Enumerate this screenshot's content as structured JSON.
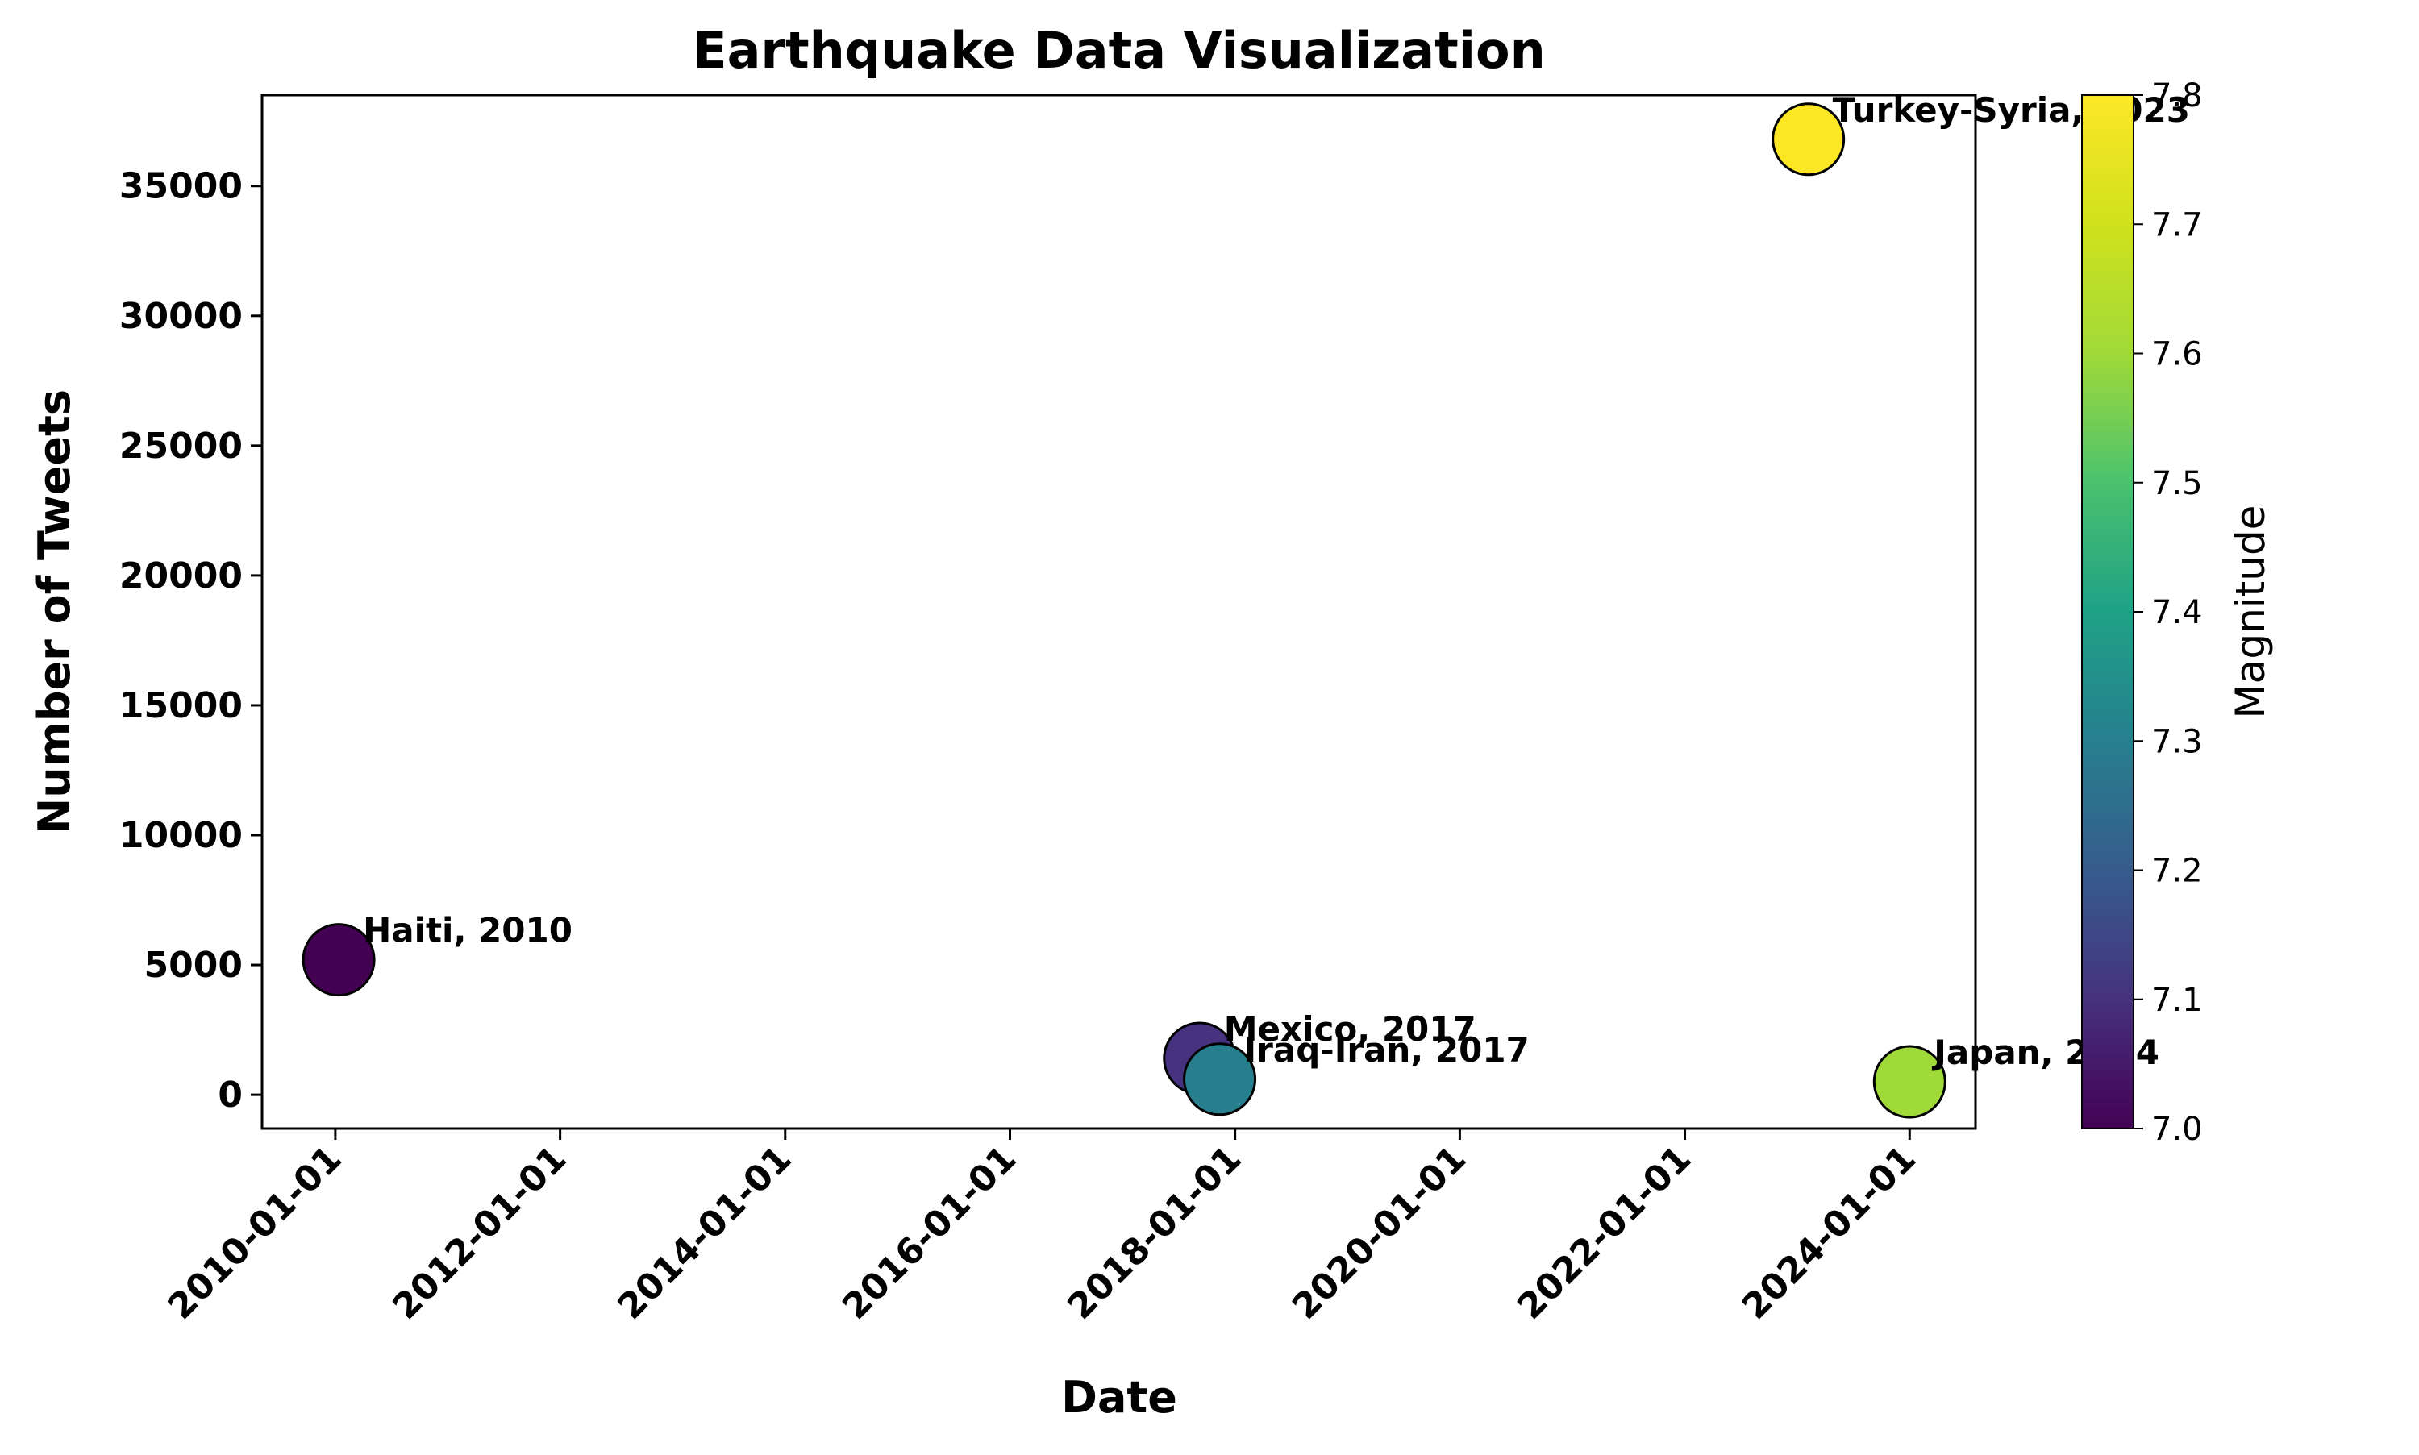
{
  "chart_data": {
    "type": "scatter",
    "title": "Earthquake Data Visualization",
    "xlabel": "Date",
    "ylabel": "Number of Tweets",
    "x_tick_labels": [
      "2010-01-01",
      "2012-01-01",
      "2014-01-01",
      "2016-01-01",
      "2018-01-01",
      "2020-01-01",
      "2022-01-01",
      "2024-01-01"
    ],
    "y_tick_labels": [
      "0",
      "5000",
      "10000",
      "15000",
      "20000",
      "25000",
      "30000",
      "35000"
    ],
    "xlim": [
      "2009-05-08",
      "2024-08-02"
    ],
    "ylim": [
      -1300,
      38500
    ],
    "grid": false,
    "points": [
      {
        "label": "Haiti, 2010",
        "date": "2010-01-12",
        "tweets": 5200,
        "magnitude": 7.0
      },
      {
        "label": "Mexico, 2017",
        "date": "2017-09-08",
        "tweets": 1400,
        "magnitude": 7.1
      },
      {
        "label": "Iraq-Iran, 2017",
        "date": "2017-11-12",
        "tweets": 600,
        "magnitude": 7.3
      },
      {
        "label": "Turkey-Syria, 2023",
        "date": "2023-02-06",
        "tweets": 36800,
        "magnitude": 7.8
      },
      {
        "label": "Japan, 2024",
        "date": "2024-01-01",
        "tweets": 500,
        "magnitude": 7.6
      }
    ],
    "colorbar": {
      "label": "Magnitude",
      "colormap": "viridis",
      "range": [
        7.0,
        7.8
      ],
      "tick_labels": [
        "7.0",
        "7.1",
        "7.2",
        "7.3",
        "7.4",
        "7.5",
        "7.6",
        "7.7",
        "7.8"
      ]
    }
  }
}
